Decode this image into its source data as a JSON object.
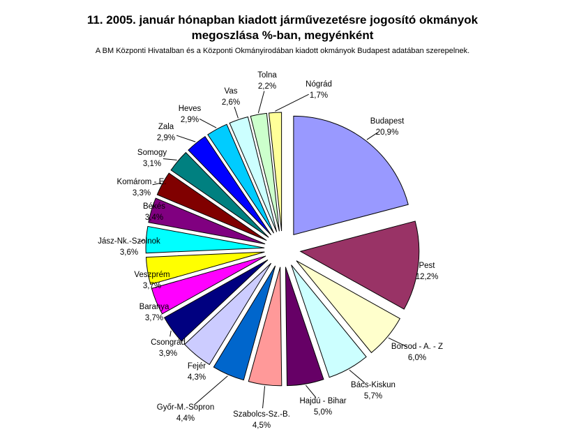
{
  "chart_data": {
    "type": "pie",
    "title_line1": "11. 2005. január hónapban kiadott járművezetésre jogosító okmányok",
    "title_line2": "megoszlása %-ban, megyénként",
    "subtitle": "A BM Központi Hivatalban és a Központi Okmányirodában kiadott okmányok Budapest adatában szerepelnek.",
    "slices": [
      {
        "name": "Budapest",
        "value": 20.9,
        "label": "20,9%",
        "color": "#9999ff"
      },
      {
        "name": "Pest",
        "value": 12.2,
        "label": "12,2%",
        "color": "#993366"
      },
      {
        "name": "Borsod - A. - Z",
        "value": 6.0,
        "label": "6,0%",
        "color": "#ffffcc"
      },
      {
        "name": "Bács-Kiskun",
        "value": 5.7,
        "label": "5,7%",
        "color": "#ccffff"
      },
      {
        "name": "Hajdú - Bihar",
        "value": 5.0,
        "label": "5,0%",
        "color": "#660066"
      },
      {
        "name": "Szabolcs-Sz.-B.",
        "value": 4.5,
        "label": "4,5%",
        "color": "#ff9999"
      },
      {
        "name": "Győr-M.-Sopron",
        "value": 4.4,
        "label": "4,4%",
        "color": "#0066cc"
      },
      {
        "name": "Fejér",
        "value": 4.3,
        "label": "4,3%",
        "color": "#ccccff"
      },
      {
        "name": "Csongrád",
        "value": 3.9,
        "label": "3,9%",
        "color": "#000080"
      },
      {
        "name": "Baranya",
        "value": 3.7,
        "label": "3,7%",
        "color": "#ff00ff"
      },
      {
        "name": "Veszprém",
        "value": 3.7,
        "label": "3,7%",
        "color": "#ffff00"
      },
      {
        "name": "Jász-Nk.-Szolnok",
        "value": 3.6,
        "label": "3,6%",
        "color": "#00ffff"
      },
      {
        "name": "Békés",
        "value": 3.4,
        "label": "3,4%",
        "color": "#800080"
      },
      {
        "name": "Komárom - E.",
        "value": 3.3,
        "label": "3,3%",
        "color": "#800000"
      },
      {
        "name": "Somogy",
        "value": 3.1,
        "label": "3,1%",
        "color": "#008080"
      },
      {
        "name": "Zala",
        "value": 2.9,
        "label": "2,9%",
        "color": "#0000ff"
      },
      {
        "name": "Heves",
        "value": 2.9,
        "label": "2,9%",
        "color": "#00ccff"
      },
      {
        "name": "Vas",
        "value": 2.6,
        "label": "2,6%",
        "color": "#ccffff"
      },
      {
        "name": "Tolna",
        "value": 2.2,
        "label": "2,2%",
        "color": "#ccffcc"
      },
      {
        "name": "Nógrád",
        "value": 1.7,
        "label": "1,7%",
        "color": "#ffff99"
      }
    ]
  }
}
